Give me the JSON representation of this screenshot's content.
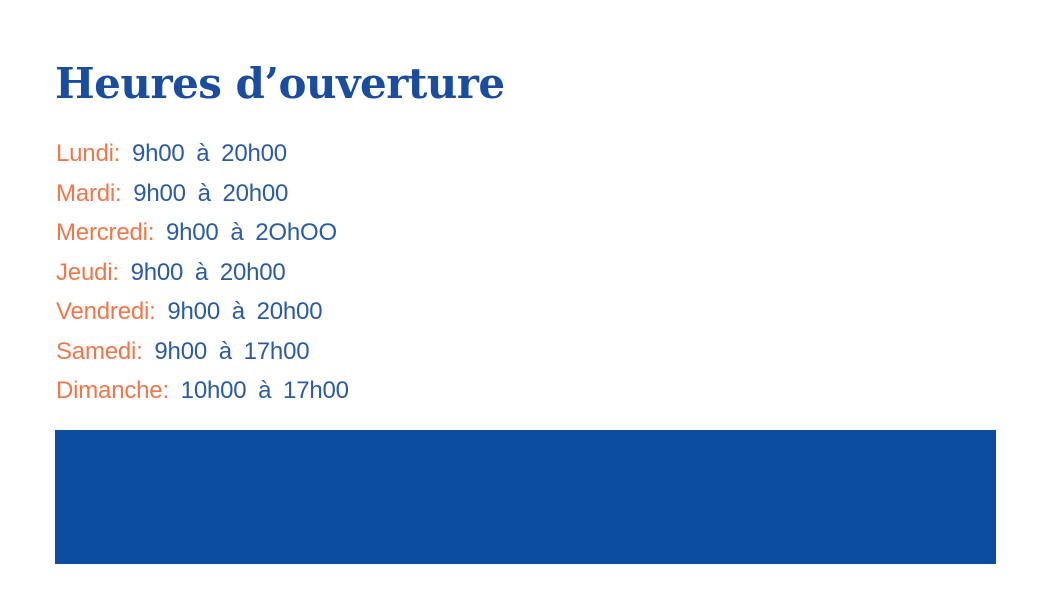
{
  "page": {
    "title": "Heures d’ouverture"
  },
  "hours": {
    "items": [
      {
        "day": "Lundi:",
        "time": "9h00 à 20h00"
      },
      {
        "day": "Mardi:",
        "time": "9h00 à 20h00"
      },
      {
        "day": "Mercredi:",
        "time": "9h00 à 2OhOO"
      },
      {
        "day": "Jeudi:",
        "time": "9h00 à 20h00"
      },
      {
        "day": "Vendredi:",
        "time": "9h00 à 20h00"
      },
      {
        "day": "Samedi:",
        "time": "9h00 à 17h00"
      },
      {
        "day": "Dimanche:",
        "time": "10h00 à 17h00"
      }
    ]
  },
  "colors": {
    "background": "#ffffff",
    "title": "#1a4c9f",
    "day": "#f3764a",
    "time": "#2a5aa8",
    "banner": "#0c4da2"
  }
}
